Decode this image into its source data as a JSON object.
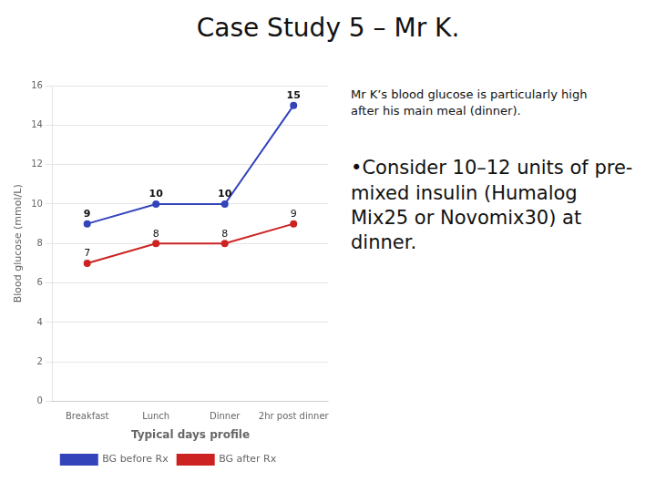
{
  "chart_data": {
    "type": "line",
    "title": "Case Study 5 – Mr K.",
    "categories": [
      "Breakfast",
      "Lunch",
      "Dinner",
      "2hr post dinner"
    ],
    "series": [
      {
        "name": "BG before Rx",
        "color": "#3344bb",
        "values": [
          9,
          10,
          10,
          15
        ]
      },
      {
        "name": "BG after Rx",
        "color": "#cc2222",
        "values": [
          7,
          8,
          8,
          9
        ]
      }
    ],
    "xlabel": "Typical days profile",
    "ylabel": "Blood glucose (mmol/L)",
    "ylim": [
      0,
      16
    ],
    "yticks": [
      0,
      2,
      4,
      6,
      8,
      10,
      12,
      14,
      16
    ],
    "grid": true,
    "legend": "bottom",
    "data_labels": true,
    "annotations": [
      [
        "Mr K’s blood glucose is particularly high",
        "after his main meal (dinner)."
      ],
      [
        "•Consider 10–12 units of pre-",
        "mixed insulin (Humalog",
        "Mix25 or Novomix30) at",
        "dinner."
      ]
    ]
  }
}
